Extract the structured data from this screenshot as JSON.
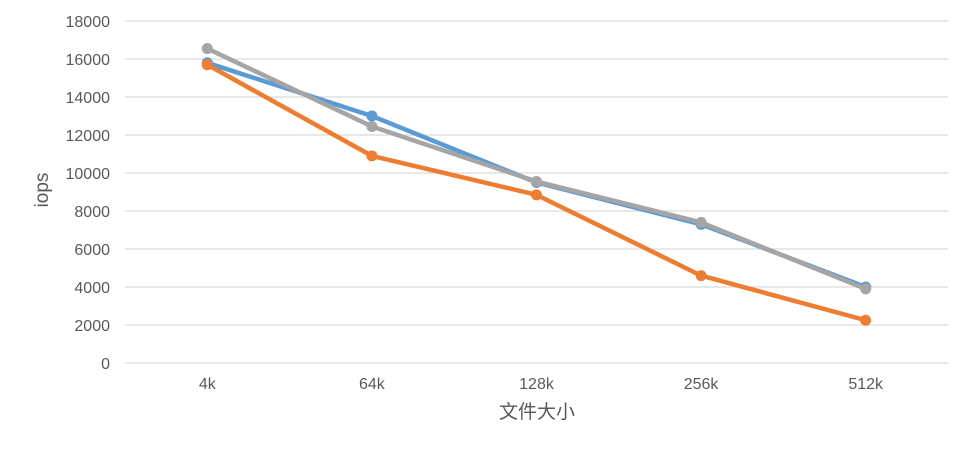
{
  "chart_data": {
    "type": "line",
    "title": "",
    "xlabel": "文件大小",
    "ylabel": "iops",
    "categories": [
      "4k",
      "64k",
      "128k",
      "256k",
      "512k"
    ],
    "ylim": [
      0,
      18000
    ],
    "yticks": [
      0,
      2000,
      4000,
      6000,
      8000,
      10000,
      12000,
      14000,
      16000,
      18000
    ],
    "grid": true,
    "legend": "none",
    "series": [
      {
        "color": "#5B9BD5",
        "values": [
          15800,
          13000,
          9500,
          7300,
          4000
        ]
      },
      {
        "color": "#ED7D31",
        "values": [
          15700,
          10900,
          8850,
          4600,
          2250
        ]
      },
      {
        "color": "#A5A5A5",
        "values": [
          16550,
          12450,
          9550,
          7400,
          3900
        ]
      }
    ]
  }
}
